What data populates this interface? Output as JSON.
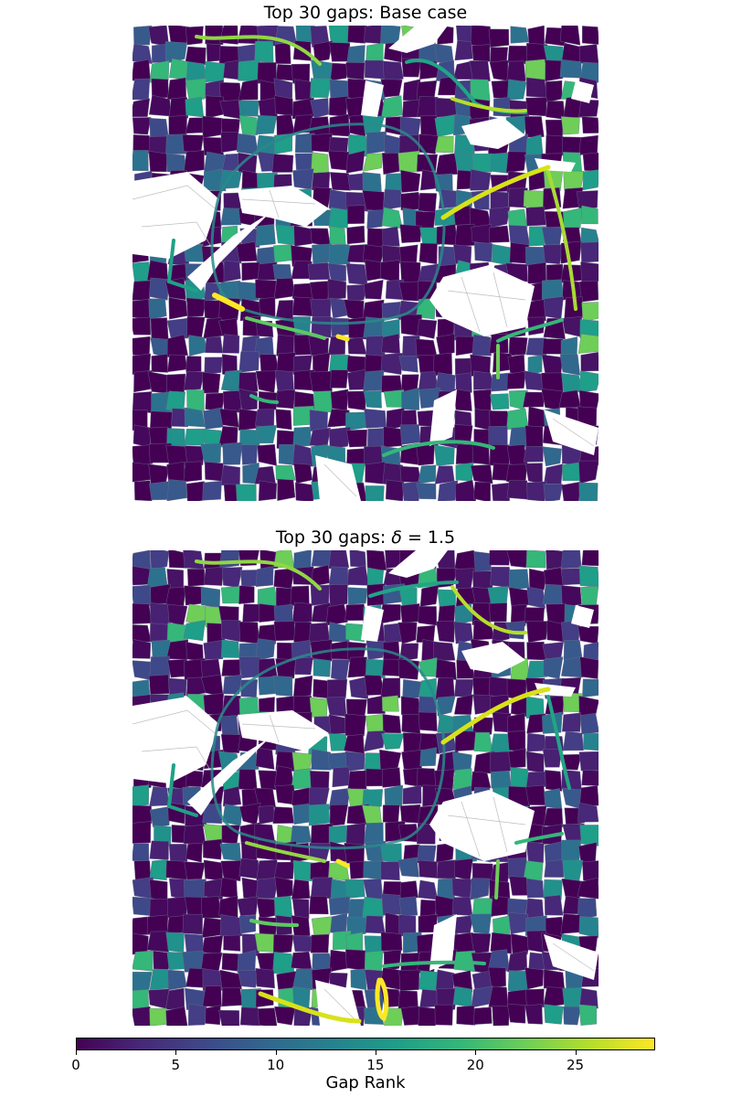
{
  "panels": [
    {
      "title_main": "Top 30 gaps: Base case",
      "title_symbol": "",
      "title_suffix": ""
    },
    {
      "title_main": "Top 30 gaps: ",
      "title_symbol": "δ",
      "title_suffix": " = 1.5"
    }
  ],
  "colorbar": {
    "label": "Gap Rank",
    "range": [
      0,
      29
    ],
    "ticks": [
      {
        "value": 0,
        "label": "0"
      },
      {
        "value": 5,
        "label": "5"
      },
      {
        "value": 10,
        "label": "10"
      },
      {
        "value": 15,
        "label": "15"
      },
      {
        "value": 20,
        "label": "20"
      },
      {
        "value": 25,
        "label": "25"
      }
    ],
    "colormap": "viridis",
    "colors": [
      "#440154",
      "#482878",
      "#3e4989",
      "#31688e",
      "#26828e",
      "#1f9e89",
      "#35b779",
      "#6ece58",
      "#b5de2b",
      "#fde725"
    ]
  }
}
